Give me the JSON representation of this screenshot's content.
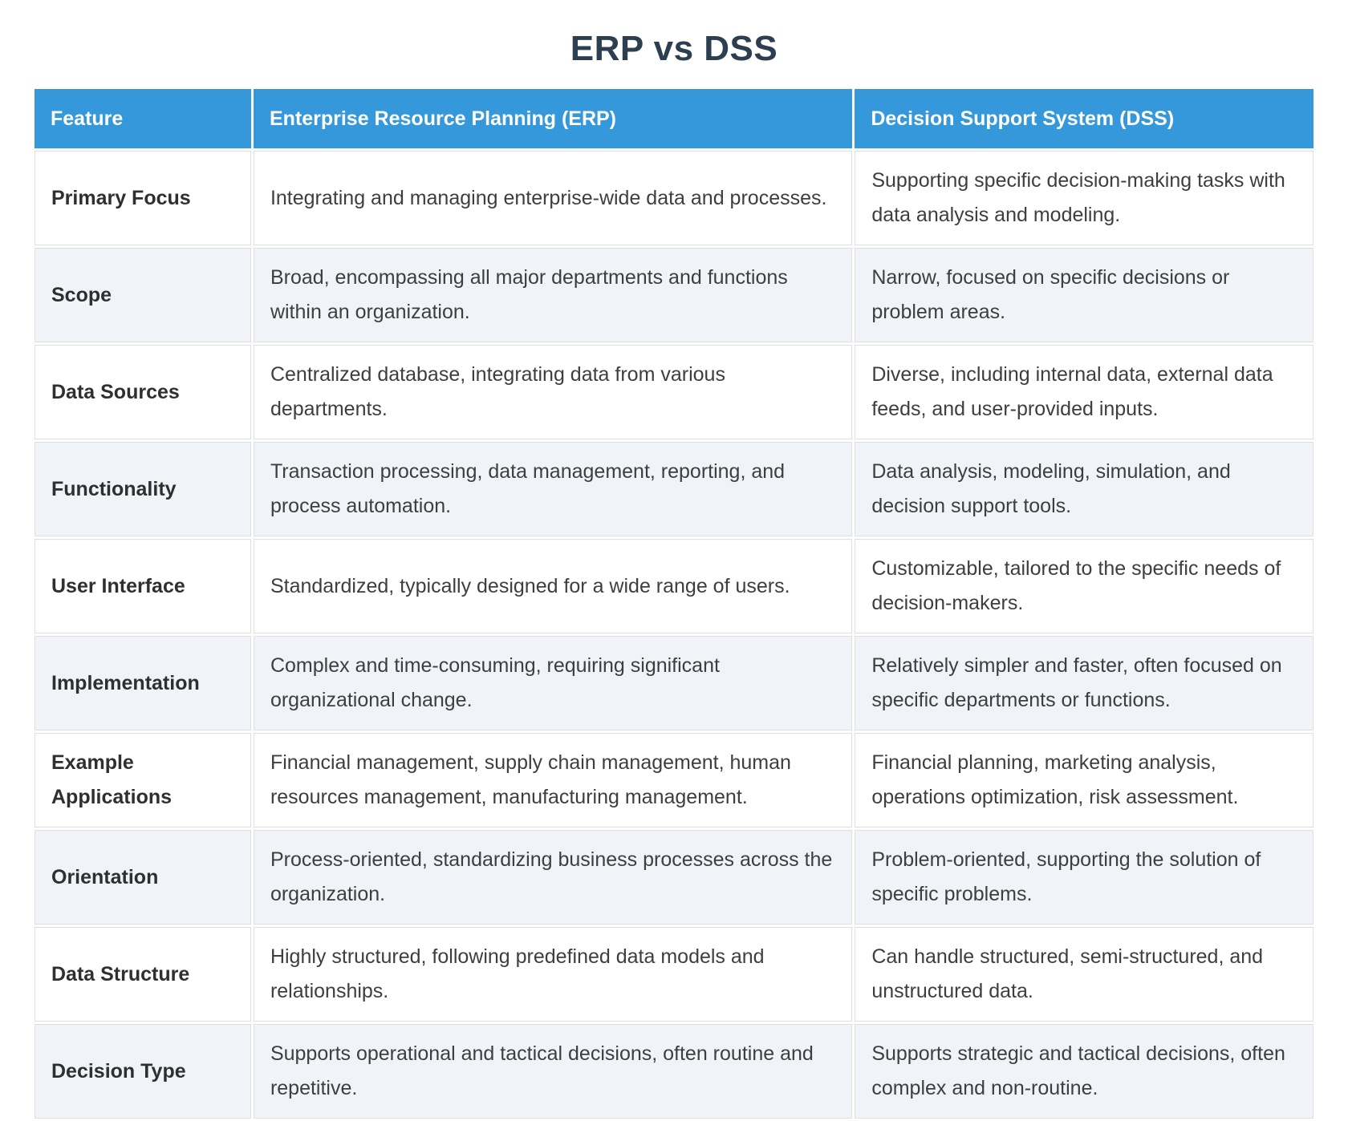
{
  "title": "ERP vs DSS",
  "colors": {
    "header_bg": "#3598db",
    "header_text": "#ffffff",
    "row_alt_bg": "#f0f4f9",
    "row_bg": "#ffffff",
    "cell_border": "#dfdfdf",
    "title_text": "#2c3e50",
    "body_text": "#3e3e3e"
  },
  "chart_data": {
    "type": "table",
    "title": "ERP vs DSS",
    "columns": [
      "Feature",
      "Enterprise Resource Planning (ERP)",
      "Decision Support System (DSS)"
    ],
    "rows": [
      [
        "Primary Focus",
        "Integrating and managing enterprise-wide data and processes.",
        "Supporting specific decision-making tasks with data analysis and modeling."
      ],
      [
        "Scope",
        "Broad, encompassing all major departments and functions within an organization.",
        "Narrow, focused on specific decisions or problem areas."
      ],
      [
        "Data Sources",
        "Centralized database, integrating data from various departments.",
        "Diverse, including internal data, external data feeds, and user-provided inputs."
      ],
      [
        "Functionality",
        "Transaction processing, data management, reporting, and process automation.",
        "Data analysis, modeling, simulation, and decision support tools."
      ],
      [
        "User Interface",
        "Standardized, typically designed for a wide range of users.",
        "Customizable, tailored to the specific needs of decision-makers."
      ],
      [
        "Implementation",
        "Complex and time-consuming, requiring significant organizational change.",
        "Relatively simpler and faster, often focused on specific departments or functions."
      ],
      [
        "Example Applications",
        "Financial management, supply chain management, human resources management, manufacturing management.",
        "Financial planning, marketing analysis, operations optimization, risk assessment."
      ],
      [
        "Orientation",
        "Process-oriented, standardizing business processes across the organization.",
        "Problem-oriented, supporting the solution of specific problems."
      ],
      [
        "Data Structure",
        "Highly structured, following predefined data models and relationships.",
        "Can handle structured, semi-structured, and unstructured data."
      ],
      [
        "Decision Type",
        "Supports operational and tactical decisions, often routine and repetitive.",
        "Supports strategic and tactical decisions, often complex and non-routine."
      ]
    ]
  }
}
